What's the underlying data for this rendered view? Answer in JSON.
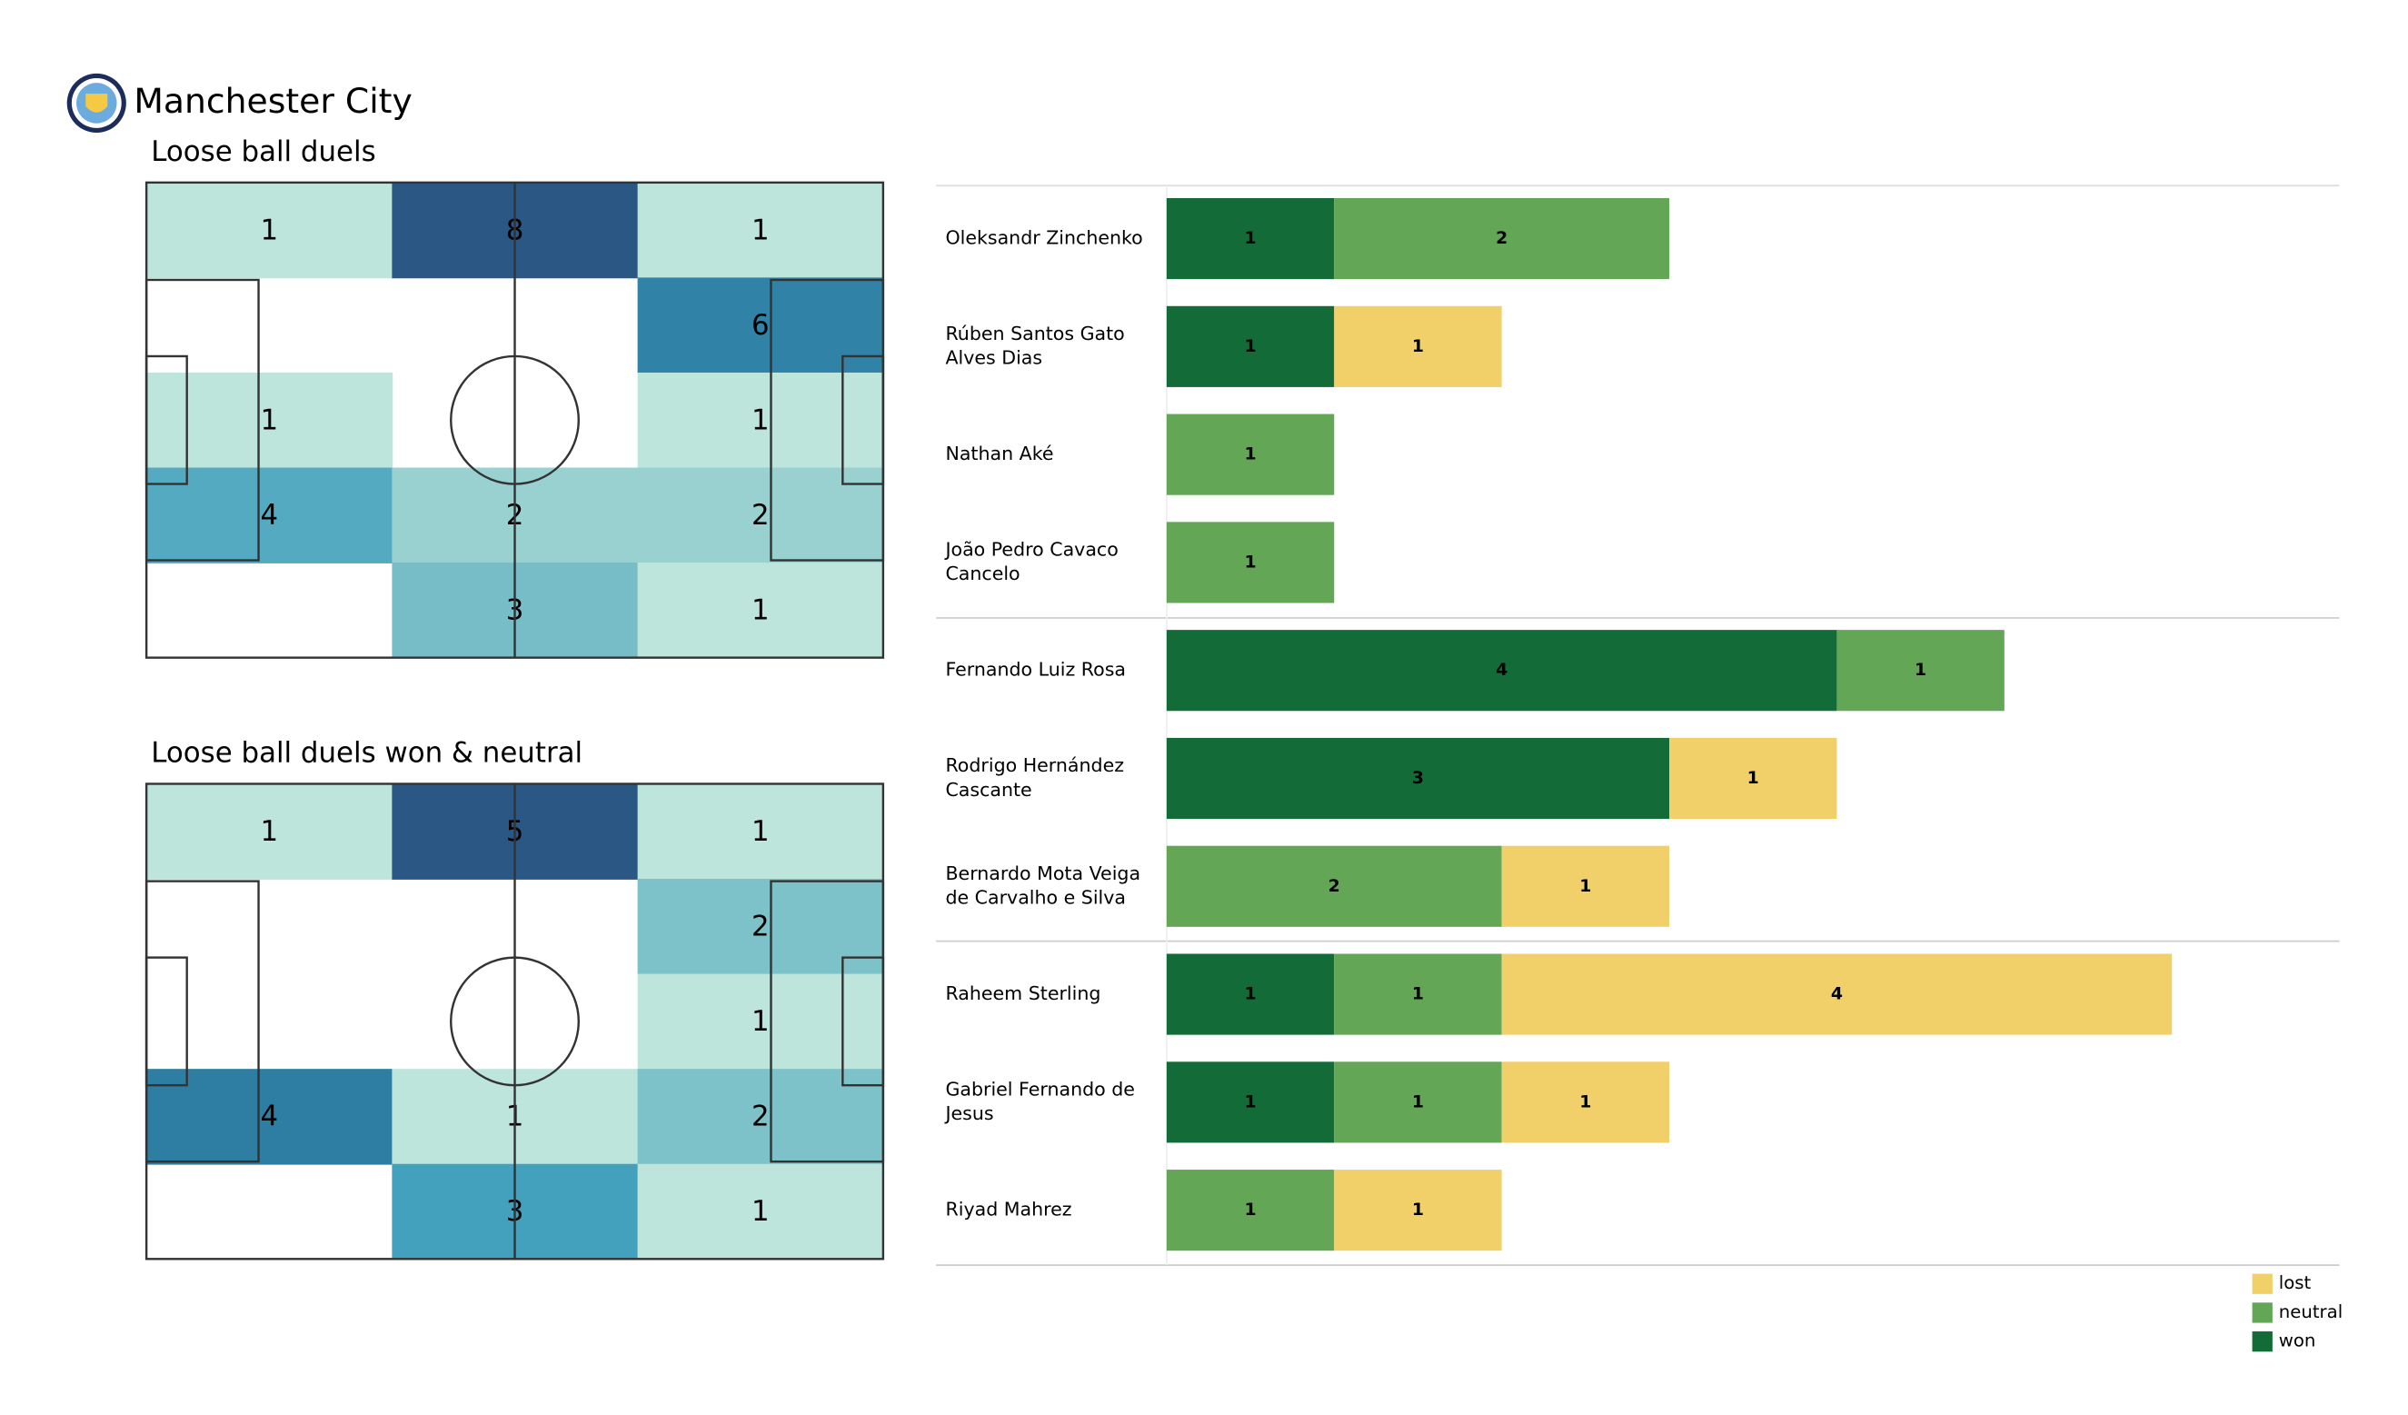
{
  "header": {
    "title": "Manchester City"
  },
  "chart_data": [
    {
      "type": "heatmap",
      "title": "Loose ball duels",
      "values": [
        [
          1,
          8,
          1
        ],
        [
          null,
          null,
          6
        ],
        [
          1,
          null,
          1
        ],
        [
          4,
          2,
          2
        ],
        [
          null,
          3,
          1
        ]
      ],
      "colormap": [
        "#bde5dc",
        "#7ec2c9",
        "#43a1bd",
        "#2d7ea2",
        "#2a5783"
      ]
    },
    {
      "type": "heatmap",
      "title": "Loose ball duels won & neutral",
      "values": [
        [
          1,
          5,
          1
        ],
        [
          null,
          null,
          2
        ],
        [
          null,
          null,
          1
        ],
        [
          4,
          1,
          2
        ],
        [
          null,
          3,
          1
        ]
      ],
      "colormap": [
        "#bde5dc",
        "#7ec2c9",
        "#43a1bd",
        "#2d7ea2",
        "#2a5783"
      ]
    },
    {
      "type": "stacked-barh",
      "categories": [
        "Oleksandr Zinchenko",
        "Rúben  Santos Gato\nAlves Dias",
        "Nathan Aké",
        "João Pedro Cavaco\nCancelo",
        "Fernando Luiz Rosa",
        "Rodrigo Hernández\nCascante",
        "Bernardo Mota Veiga\nde Carvalho e Silva",
        "Raheem Sterling",
        "Gabriel Fernando de\nJesus",
        "Riyad Mahrez"
      ],
      "series": [
        {
          "name": "won",
          "color": "#136b37",
          "values": [
            1,
            1,
            0,
            0,
            4,
            3,
            0,
            1,
            1,
            0
          ]
        },
        {
          "name": "neutral",
          "color": "#63a656",
          "values": [
            2,
            0,
            1,
            1,
            1,
            0,
            2,
            1,
            1,
            1
          ]
        },
        {
          "name": "lost",
          "color": "#f1d06a",
          "values": [
            0,
            1,
            0,
            0,
            0,
            1,
            1,
            4,
            1,
            1
          ]
        }
      ],
      "xlim": [
        0,
        7
      ]
    }
  ]
}
